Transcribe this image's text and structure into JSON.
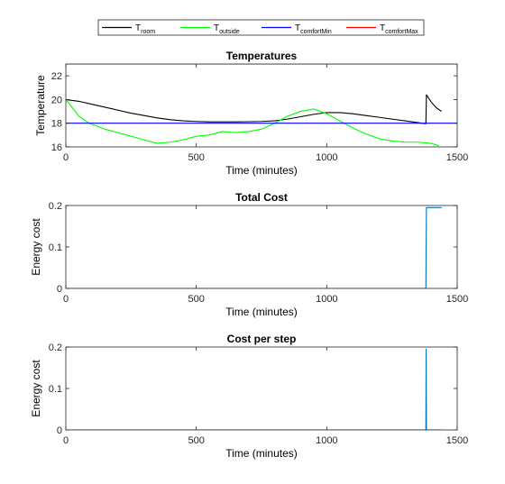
{
  "legend": {
    "items": [
      {
        "main": "T",
        "sub": "room",
        "color": "#000000"
      },
      {
        "main": "T",
        "sub": "outside",
        "color": "#00ff00"
      },
      {
        "main": "T",
        "sub": "comfortMin",
        "color": "#0000ff"
      },
      {
        "main": "T",
        "sub": "comfortMax",
        "color": "#ff0000"
      }
    ],
    "placement": "top-center"
  },
  "chart_data": [
    {
      "type": "line",
      "title": "Temperatures",
      "xlabel": "Time (minutes)",
      "ylabel": "Temperature",
      "xlim": [
        0,
        1500
      ],
      "ylim": [
        16,
        23
      ],
      "xticks": [
        "0",
        "500",
        "1000",
        "1500"
      ],
      "yticks": [
        "16",
        "18",
        "20",
        "22"
      ],
      "xtick_values": [
        0,
        500,
        1000,
        1500
      ],
      "ytick_values": [
        16,
        18,
        20,
        22
      ],
      "grid": false,
      "series": [
        {
          "name": "room",
          "color": "#000000",
          "x": [
            0,
            50,
            100,
            150,
            200,
            250,
            300,
            350,
            400,
            450,
            500,
            550,
            600,
            650,
            700,
            750,
            800,
            850,
            900,
            950,
            1000,
            1050,
            1100,
            1150,
            1200,
            1250,
            1300,
            1350,
            1380,
            1382,
            1400,
            1420,
            1440
          ],
          "y": [
            20.0,
            19.85,
            19.6,
            19.35,
            19.1,
            18.85,
            18.65,
            18.45,
            18.3,
            18.2,
            18.15,
            18.12,
            18.12,
            18.12,
            18.13,
            18.15,
            18.2,
            18.35,
            18.55,
            18.75,
            18.9,
            18.9,
            18.8,
            18.65,
            18.5,
            18.35,
            18.2,
            18.05,
            17.95,
            20.4,
            19.8,
            19.3,
            19.0
          ]
        },
        {
          "name": "outside",
          "color": "#00ff00",
          "x": [
            0,
            25,
            50,
            75,
            100,
            150,
            200,
            250,
            300,
            350,
            400,
            450,
            500,
            550,
            600,
            650,
            700,
            750,
            800,
            850,
            900,
            950,
            1000,
            1050,
            1100,
            1150,
            1200,
            1250,
            1300,
            1350,
            1400,
            1430
          ],
          "y": [
            20.0,
            19.3,
            18.6,
            18.2,
            17.9,
            17.5,
            17.2,
            16.9,
            16.6,
            16.3,
            16.4,
            16.6,
            16.9,
            17.0,
            17.3,
            17.2,
            17.3,
            17.5,
            18.0,
            18.6,
            19.0,
            19.2,
            18.8,
            18.2,
            17.6,
            17.1,
            16.7,
            16.5,
            16.4,
            16.4,
            16.3,
            16.1
          ]
        },
        {
          "name": "comfortMin",
          "color": "#0000ff",
          "x": [
            0,
            1500
          ],
          "y": [
            18,
            18
          ]
        },
        {
          "name": "comfortMax",
          "color": "#ff0000",
          "x": [
            0,
            1500
          ],
          "y": [
            23,
            23
          ]
        }
      ]
    },
    {
      "type": "line",
      "title": "Total Cost",
      "xlabel": "Time (minutes)",
      "ylabel": "Energy cost",
      "xlim": [
        0,
        1500
      ],
      "ylim": [
        0,
        0.2
      ],
      "xticks": [
        "0",
        "500",
        "1000",
        "1500"
      ],
      "yticks": [
        "0",
        "0.1",
        "0.2"
      ],
      "xtick_values": [
        0,
        500,
        1000,
        1500
      ],
      "ytick_values": [
        0,
        0.1,
        0.2
      ],
      "grid": false,
      "series": [
        {
          "name": "",
          "color": "#0072bd",
          "x": [
            0,
            1380,
            1382,
            1440
          ],
          "y": [
            0,
            0,
            0.195,
            0.195
          ]
        }
      ]
    },
    {
      "type": "line",
      "title": "Cost per step",
      "xlabel": "Time (minutes)",
      "ylabel": "Energy cost",
      "xlim": [
        0,
        1500
      ],
      "ylim": [
        0,
        0.2
      ],
      "xticks": [
        "0",
        "500",
        "1000",
        "1500"
      ],
      "yticks": [
        "0",
        "0.1",
        "0.2"
      ],
      "xtick_values": [
        0,
        500,
        1000,
        1500
      ],
      "ytick_values": [
        0,
        0.1,
        0.2
      ],
      "grid": false,
      "series": [
        {
          "name": "",
          "color": "#0072bd",
          "x": [
            0,
            1380,
            1381,
            1382,
            1440
          ],
          "y": [
            0,
            0,
            0.195,
            0,
            0
          ]
        }
      ]
    }
  ]
}
